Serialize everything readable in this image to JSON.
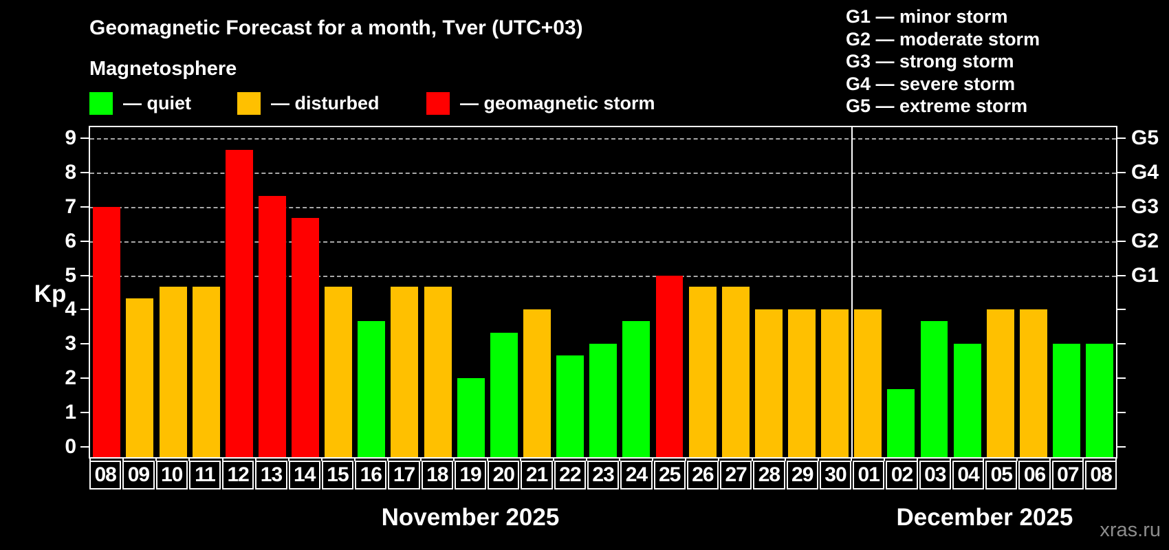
{
  "title": "Geomagnetic Forecast for a month, Tver (UTC+03)",
  "subtitle": "Magnetosphere",
  "legend": {
    "items": [
      {
        "key": "quiet",
        "label": "— quiet",
        "color": "#00ff00"
      },
      {
        "key": "disturbed",
        "label": "— disturbed",
        "color": "#ffc000"
      },
      {
        "key": "storm",
        "label": "— geomagnetic storm",
        "color": "#ff0000"
      }
    ]
  },
  "storm_scale_legend": {
    "items": [
      "G1 — minor storm",
      "G2 — moderate storm",
      "G3 — strong storm",
      "G4 — severe storm",
      "G5 — extreme storm"
    ]
  },
  "watermark": "xras.ru",
  "chart_data": {
    "type": "bar",
    "ylabel": "Kp",
    "ylim": [
      0,
      9
    ],
    "y_draw_min": -0.31,
    "y_draw_max": 9.33,
    "yticks": [
      0,
      1,
      2,
      3,
      4,
      5,
      6,
      7,
      8,
      9
    ],
    "gridlines": [
      5,
      6,
      7,
      8,
      9
    ],
    "grid_style": "dashed",
    "grid_color": "#a9a9a9",
    "right_axis_labels": [
      {
        "kp": 5,
        "label": "G1"
      },
      {
        "kp": 6,
        "label": "G2"
      },
      {
        "kp": 7,
        "label": "G3"
      },
      {
        "kp": 8,
        "label": "G4"
      },
      {
        "kp": 9,
        "label": "G5"
      }
    ],
    "categories": [
      "08",
      "09",
      "10",
      "11",
      "12",
      "13",
      "14",
      "15",
      "16",
      "17",
      "18",
      "19",
      "20",
      "21",
      "22",
      "23",
      "24",
      "25",
      "26",
      "27",
      "28",
      "29",
      "30",
      "01",
      "02",
      "03",
      "04",
      "05",
      "06",
      "07",
      "08"
    ],
    "values": [
      7,
      4.33,
      4.67,
      4.67,
      8.67,
      7.33,
      6.67,
      4.67,
      3.67,
      4.67,
      4.67,
      2,
      3.33,
      4,
      2.67,
      3,
      3.67,
      5,
      4.67,
      4.67,
      4,
      4,
      4,
      4,
      1.67,
      3.67,
      3,
      4,
      4,
      3,
      3
    ],
    "statuses": [
      "storm",
      "disturbed",
      "disturbed",
      "disturbed",
      "storm",
      "storm",
      "storm",
      "disturbed",
      "quiet",
      "disturbed",
      "disturbed",
      "quiet",
      "quiet",
      "disturbed",
      "quiet",
      "quiet",
      "quiet",
      "storm",
      "disturbed",
      "disturbed",
      "disturbed",
      "disturbed",
      "disturbed",
      "disturbed",
      "quiet",
      "quiet",
      "quiet",
      "disturbed",
      "disturbed",
      "quiet",
      "quiet"
    ],
    "colors": {
      "quiet": "#00ff00",
      "disturbed": "#ffc000",
      "storm": "#ff0000"
    },
    "months": [
      {
        "label": "November 2025",
        "start_index": 0,
        "days": 23
      },
      {
        "label": "December 2025",
        "start_index": 23,
        "days": 8
      }
    ],
    "separator_after_index": 22
  }
}
